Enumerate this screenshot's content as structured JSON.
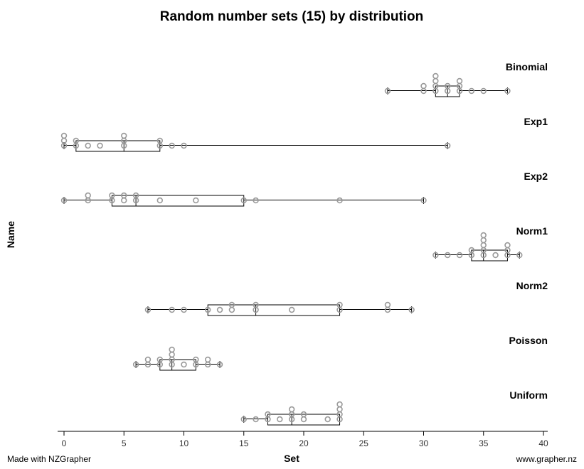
{
  "chart_data": {
    "type": "dot-box-plot",
    "title": "Random number sets (15) by distribution",
    "xlabel": "Set",
    "ylabel": "Name",
    "xlim": [
      0,
      40
    ],
    "x_ticks": [
      0,
      5,
      10,
      15,
      20,
      25,
      30,
      35,
      40
    ],
    "footer_left": "Made with NZGrapher",
    "footer_right": "www.grapher.nz",
    "groups": [
      {
        "name": "Binomial",
        "values": [
          27,
          30,
          30,
          31,
          31,
          31,
          31,
          32,
          32,
          33,
          33,
          33,
          34,
          35,
          37
        ],
        "min": 27,
        "q1": 31,
        "median": 32,
        "q3": 33,
        "max": 37
      },
      {
        "name": "Exp1",
        "values": [
          0,
          0,
          0,
          1,
          1,
          2,
          3,
          5,
          5,
          5,
          8,
          8,
          9,
          10,
          32
        ],
        "min": 0,
        "q1": 1,
        "median": 5,
        "q3": 8,
        "max": 32
      },
      {
        "name": "Exp2",
        "values": [
          0,
          2,
          2,
          4,
          4,
          5,
          5,
          6,
          6,
          8,
          11,
          15,
          16,
          23,
          30
        ],
        "min": 0,
        "q1": 4,
        "median": 6,
        "q3": 15,
        "max": 30
      },
      {
        "name": "Norm1",
        "values": [
          31,
          32,
          33,
          34,
          34,
          35,
          35,
          35,
          35,
          35,
          36,
          37,
          37,
          37,
          38
        ],
        "min": 31,
        "q1": 34,
        "median": 35,
        "q3": 37,
        "max": 38
      },
      {
        "name": "Norm2",
        "values": [
          7,
          9,
          10,
          12,
          13,
          14,
          14,
          16,
          16,
          19,
          23,
          23,
          27,
          27,
          29
        ],
        "min": 7,
        "q1": 12,
        "median": 16,
        "q3": 23,
        "max": 29
      },
      {
        "name": "Poisson",
        "values": [
          6,
          7,
          7,
          8,
          8,
          9,
          9,
          9,
          9,
          10,
          11,
          11,
          12,
          12,
          13
        ],
        "min": 6,
        "q1": 8,
        "median": 9,
        "q3": 11,
        "max": 13
      },
      {
        "name": "Uniform",
        "values": [
          15,
          16,
          17,
          17,
          18,
          19,
          19,
          19,
          20,
          20,
          22,
          23,
          23,
          23,
          23
        ],
        "min": 15,
        "q1": 17,
        "median": 19,
        "q3": 23,
        "max": 23
      }
    ]
  }
}
